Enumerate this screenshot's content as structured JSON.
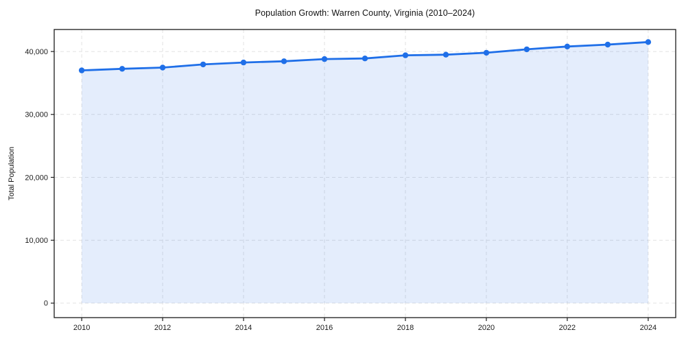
{
  "title": "Population Growth: Warren County, Virginia (2010–2024)",
  "chart_data": {
    "type": "line",
    "title": "Population Growth: Warren County, Virginia (2010–2024)",
    "xlabel": "",
    "ylabel": "Total Population",
    "x": [
      2010,
      2011,
      2012,
      2013,
      2014,
      2015,
      2016,
      2017,
      2018,
      2019,
      2020,
      2021,
      2022,
      2023,
      2024
    ],
    "series": [
      {
        "name": "Total Population",
        "values": [
          37000,
          37250,
          37450,
          37950,
          38250,
          38450,
          38800,
          38900,
          39400,
          39500,
          39800,
          40350,
          40800,
          41100,
          41500
        ]
      }
    ],
    "x_ticks": [
      2010,
      2012,
      2014,
      2016,
      2018,
      2020,
      2022,
      2024
    ],
    "x_tick_labels": [
      "2010",
      "2012",
      "2014",
      "2016",
      "2018",
      "2020",
      "2022",
      "2024"
    ],
    "y_ticks": [
      0,
      10000,
      20000,
      30000,
      40000
    ],
    "y_tick_labels": [
      "0",
      "10,000",
      "20,000",
      "30,000",
      "40,000"
    ],
    "xlim": [
      2009.32,
      2024.68
    ],
    "ylim": [
      -2300,
      43500
    ],
    "grid": true,
    "legend": "none",
    "area_fill_baseline": 0,
    "line_color": "#1f6fe8",
    "fill_color": "rgba(31,111,232,0.12)",
    "grid_color": "#e2e2e2",
    "frame_color": "#1a1a1a",
    "marker": "circle"
  }
}
